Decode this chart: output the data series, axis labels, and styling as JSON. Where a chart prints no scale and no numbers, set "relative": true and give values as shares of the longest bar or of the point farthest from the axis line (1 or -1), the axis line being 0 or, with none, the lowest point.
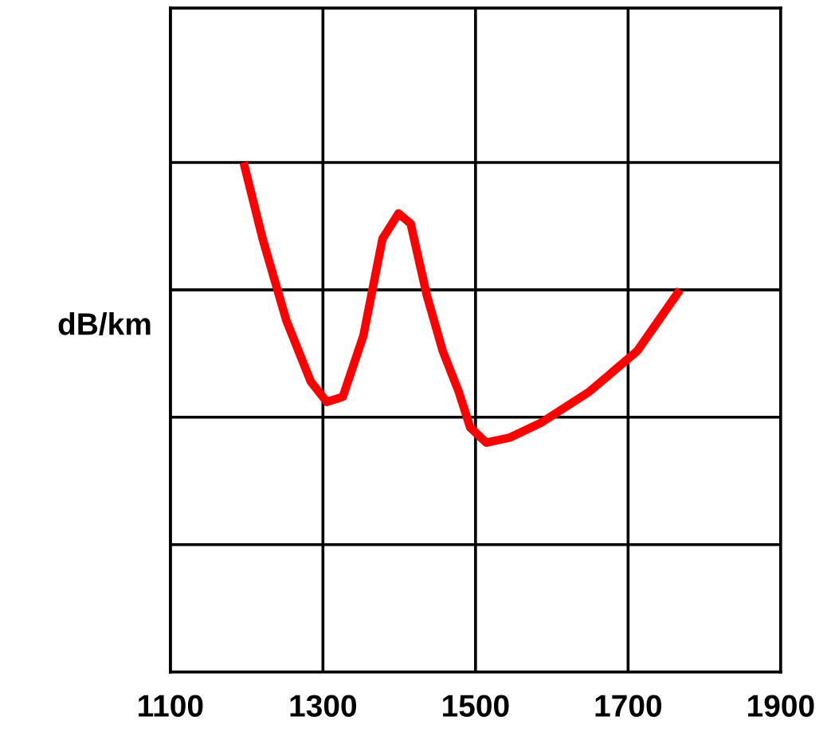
{
  "chart_data": {
    "type": "line",
    "ylabel": "dB/km",
    "relative": true,
    "grid": true,
    "legend": false,
    "marker": "none",
    "line_style": "solid",
    "xlim": [
      1100,
      1900
    ],
    "xticks": [
      1100,
      1300,
      1500,
      1700,
      1900
    ],
    "series": [
      {
        "color": "#ff0000",
        "x": [
          1196,
          1221,
          1252,
          1284,
          1305,
          1326,
          1353,
          1378,
          1399,
          1415,
          1436,
          1457,
          1478,
          1493,
          1514,
          1545,
          1587,
          1649,
          1712,
          1768
        ],
        "values": [
          1.0,
          0.85,
          0.69,
          0.57,
          0.53,
          0.54,
          0.66,
          0.85,
          0.9,
          0.88,
          0.74,
          0.63,
          0.55,
          0.48,
          0.45,
          0.46,
          0.49,
          0.55,
          0.63,
          0.75
        ]
      }
    ]
  }
}
